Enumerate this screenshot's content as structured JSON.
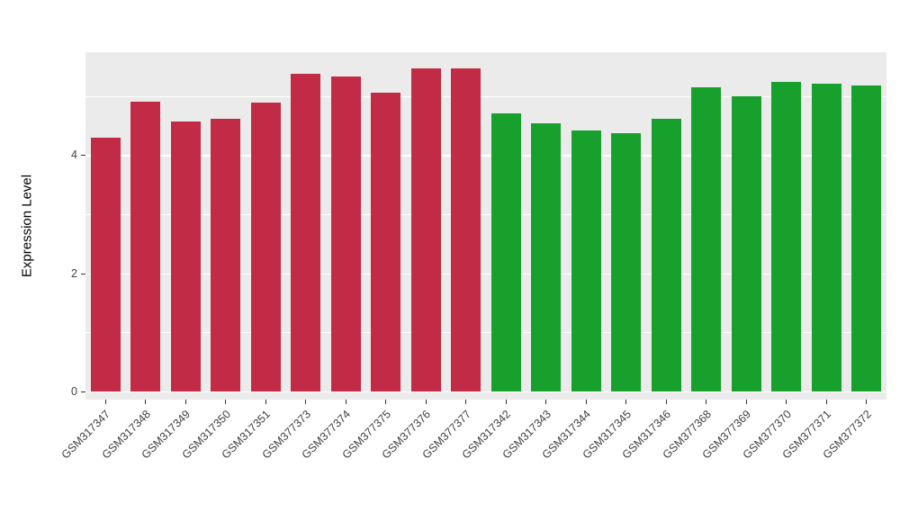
{
  "chart_data": {
    "type": "bar",
    "title": "",
    "xlabel": "",
    "ylabel": "Expression Level",
    "ylim": [
      0,
      5.74
    ],
    "yticks": [
      0,
      2,
      4
    ],
    "minor_gridlines": [
      1,
      3,
      5
    ],
    "grid": "on",
    "legend": "none",
    "categories": [
      "GSM317347",
      "GSM317348",
      "GSM317349",
      "GSM317350",
      "GSM317351",
      "GSM377373",
      "GSM377374",
      "GSM377375",
      "GSM377376",
      "GSM377377",
      "GSM317342",
      "GSM317343",
      "GSM317344",
      "GSM317345",
      "GSM317346",
      "GSM377368",
      "GSM377369",
      "GSM377370",
      "GSM377371",
      "GSM377372"
    ],
    "values": [
      4.3,
      4.9,
      4.57,
      4.61,
      4.88,
      5.38,
      5.33,
      5.06,
      5.47,
      5.46,
      4.7,
      4.53,
      4.41,
      4.37,
      4.62,
      5.14,
      5.0,
      5.24,
      5.21,
      5.18
    ],
    "groups": [
      {
        "name": "red-group",
        "color": "#C22B45",
        "count": 10
      },
      {
        "name": "green-group",
        "color": "#17A02B",
        "count": 10
      }
    ],
    "panel_background": "#EBEBEB",
    "gridline_color": "#FFFFFF",
    "background": "#FFFFFF",
    "axis_text_color": "#404040"
  }
}
